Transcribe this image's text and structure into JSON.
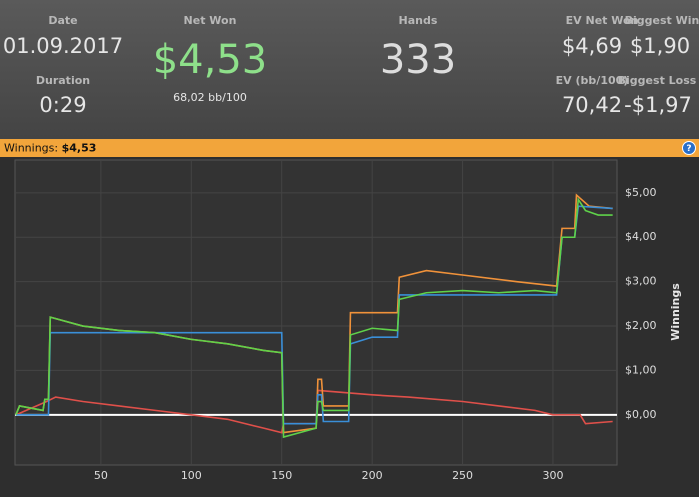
{
  "header": {
    "date_label": "Date",
    "date": "01.09.2017",
    "duration_label": "Duration",
    "duration": "0:29",
    "net_won_label": "Net Won",
    "net_won": "$4,53",
    "bb_per_100": "68,02 bb/100",
    "hands_label": "Hands",
    "hands": "333",
    "ev_net_won_label": "EV Net Won",
    "ev_net_won": "$4,69",
    "biggest_win_label": "Biggest Win",
    "biggest_win": "$1,90",
    "ev_bb_label": "EV (bb/100)",
    "ev_bb": "70,42",
    "biggest_loss_label": "Biggest Loss",
    "biggest_loss": "-$1,97"
  },
  "banner": {
    "label": "Winnings:",
    "value": "$4,53",
    "help": "?"
  },
  "chart_data": {
    "type": "line",
    "ylabel": "Winnings",
    "xlim": [
      2.5,
      335.4
    ],
    "xticks": [
      50,
      100,
      150,
      200,
      250,
      300
    ],
    "ylim": [
      -1.13,
      5.74
    ],
    "yticks": [
      {
        "value": 0,
        "label": "$0,00"
      },
      {
        "value": 1,
        "label": "$1,00"
      },
      {
        "value": 2,
        "label": "$2,00"
      },
      {
        "value": 3,
        "label": "$3,00"
      },
      {
        "value": 4,
        "label": "$4,00"
      },
      {
        "value": 5,
        "label": "$5,00"
      }
    ],
    "grid": true,
    "series": [
      {
        "color": "#e0504a",
        "x": [
          3,
          20,
          25,
          40,
          60,
          80,
          100,
          120,
          140,
          150,
          151,
          169,
          170,
          200,
          220,
          250,
          270,
          290,
          300,
          315,
          318,
          333
        ],
        "values": [
          0,
          0.3,
          0.4,
          0.3,
          0.2,
          0.1,
          0,
          -0.1,
          -0.3,
          -0.4,
          -0.2,
          -0.2,
          0.55,
          0.45,
          0.4,
          0.3,
          0.2,
          0.1,
          0,
          0,
          -0.2,
          -0.15
        ]
      },
      {
        "color": "#f0923a",
        "x": [
          3,
          5,
          18,
          19,
          21,
          22,
          40,
          60,
          80,
          100,
          120,
          140,
          150,
          151,
          169,
          170,
          172,
          173,
          187,
          188,
          214,
          215,
          230,
          250,
          280,
          302,
          305,
          312,
          313,
          320,
          333
        ],
        "values": [
          0,
          0.2,
          0.1,
          0.35,
          0.35,
          2.2,
          2.0,
          1.9,
          1.85,
          1.7,
          1.6,
          1.45,
          1.4,
          -0.4,
          -0.3,
          0.8,
          0.8,
          0.2,
          0.2,
          2.3,
          2.3,
          3.1,
          3.25,
          3.15,
          3.0,
          2.9,
          4.2,
          4.2,
          4.95,
          4.7,
          4.65
        ]
      },
      {
        "color": "#3a8fd8",
        "x": [
          3,
          21,
          22,
          150,
          151,
          169,
          170,
          172,
          173,
          187,
          188,
          200,
          214,
          215,
          302,
          305,
          312,
          314,
          333
        ],
        "values": [
          0,
          0,
          1.85,
          1.85,
          -0.2,
          -0.2,
          0.45,
          0.45,
          -0.15,
          -0.15,
          1.6,
          1.75,
          1.75,
          2.7,
          2.7,
          4.0,
          4.0,
          4.7,
          4.65
        ]
      },
      {
        "color": "#5fd24a",
        "x": [
          3,
          5,
          18,
          19,
          21,
          22,
          40,
          60,
          80,
          100,
          120,
          140,
          150,
          151,
          160,
          169,
          170,
          172,
          173,
          187,
          188,
          200,
          214,
          215,
          230,
          250,
          270,
          290,
          302,
          305,
          312,
          314,
          318,
          325,
          333
        ],
        "values": [
          0,
          0.2,
          0.1,
          0.35,
          0.35,
          2.2,
          2.0,
          1.9,
          1.85,
          1.7,
          1.6,
          1.45,
          1.4,
          -0.5,
          -0.4,
          -0.3,
          0.3,
          0.3,
          0.1,
          0.1,
          1.8,
          1.95,
          1.9,
          2.6,
          2.75,
          2.8,
          2.75,
          2.8,
          2.75,
          4.0,
          4.0,
          4.85,
          4.6,
          4.5,
          4.5
        ]
      }
    ]
  }
}
